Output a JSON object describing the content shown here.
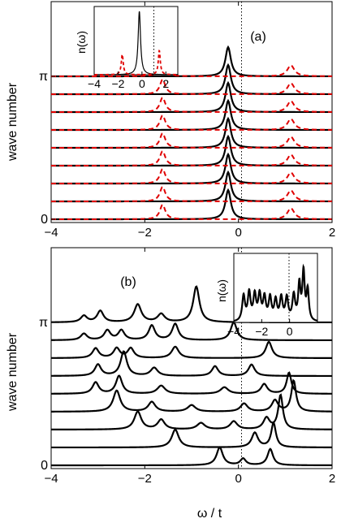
{
  "figure": {
    "xlabel": "ω / t",
    "ylabel": "wave number"
  },
  "colors": {
    "solid": "#000000",
    "dashed": "#e00000",
    "axis": "#000000"
  },
  "chart_data": [
    {
      "type": "line",
      "panel_label": "(a)",
      "ylabel": "wave number",
      "xlim": [
        -4,
        2
      ],
      "xticks": [
        -4,
        -2,
        0,
        2
      ],
      "xtick_labels": [
        "−4",
        "−2",
        "0",
        "2"
      ],
      "ytick_labels": [
        "0",
        "π"
      ],
      "y_levels": [
        0,
        1,
        2,
        3,
        4,
        5,
        6,
        7,
        8
      ],
      "y_tick_levels": [
        0,
        8
      ],
      "vline_x": 0,
      "series": [
        {
          "style": "solid",
          "peaks": [
            [
              -0.22,
              0.07,
              1.0
            ]
          ]
        },
        {
          "style": "dashed",
          "peaks": [
            [
              -1.62,
              0.07,
              0.5
            ],
            [
              1.12,
              0.09,
              0.38
            ]
          ]
        }
      ],
      "inset": {
        "ylabel": "n(ω)",
        "xlim": [
          -4,
          3
        ],
        "xticks": [
          -4,
          -2,
          0,
          2
        ],
        "xtick_labels": [
          "−4",
          "−2",
          "0",
          "2"
        ],
        "vline_x": 0,
        "series": [
          {
            "style": "solid",
            "peaks": [
              [
                -0.22,
                0.12,
                1.0
              ]
            ]
          },
          {
            "style": "dashed",
            "peaks": [
              [
                -1.65,
                0.1,
                0.32
              ],
              [
                1.45,
                0.1,
                0.38
              ]
            ]
          }
        ]
      }
    },
    {
      "type": "line",
      "panel_label": "(b)",
      "ylabel": "wave number",
      "xlim": [
        -4,
        2
      ],
      "xticks": [
        -4,
        -2,
        0,
        2
      ],
      "xtick_labels": [
        "−4",
        "−2",
        "0",
        "2"
      ],
      "ytick_labels": [
        "0",
        "π"
      ],
      "y_levels": [
        0,
        1,
        2,
        3,
        4,
        5,
        6,
        7,
        8
      ],
      "y_tick_levels": [
        0,
        8
      ],
      "vline_x": 0,
      "curves": [
        [
          [
            -0.4,
            0.08,
            0.55
          ],
          [
            0.1,
            0.07,
            0.2
          ],
          [
            0.68,
            0.07,
            0.5
          ]
        ],
        [
          [
            -1.35,
            0.09,
            0.55
          ],
          [
            0.35,
            0.08,
            0.45
          ],
          [
            0.75,
            0.06,
            0.75
          ]
        ],
        [
          [
            -2.15,
            0.09,
            0.55
          ],
          [
            -1.65,
            0.09,
            0.3
          ],
          [
            -0.8,
            0.1,
            0.2
          ],
          [
            -0.1,
            0.09,
            0.25
          ],
          [
            0.6,
            0.08,
            0.35
          ],
          [
            0.9,
            0.06,
            1.05
          ]
        ],
        [
          [
            -2.6,
            0.09,
            0.65
          ],
          [
            -1.85,
            0.09,
            0.3
          ],
          [
            -1.0,
            0.1,
            0.2
          ],
          [
            0.12,
            0.09,
            0.25
          ],
          [
            0.78,
            0.08,
            0.35
          ],
          [
            1.18,
            0.06,
            0.95
          ]
        ],
        [
          [
            -3.05,
            0.08,
            0.35
          ],
          [
            -2.55,
            0.08,
            0.55
          ],
          [
            -1.65,
            0.1,
            0.25
          ],
          [
            -0.3,
            0.1,
            0.2
          ],
          [
            0.55,
            0.08,
            0.3
          ],
          [
            1.08,
            0.06,
            0.65
          ]
        ],
        [
          [
            -3.0,
            0.08,
            0.35
          ],
          [
            -2.45,
            0.08,
            0.75
          ],
          [
            -1.8,
            0.09,
            0.25
          ],
          [
            -0.5,
            0.08,
            0.3
          ],
          [
            0.28,
            0.08,
            0.35
          ]
        ],
        [
          [
            -3.05,
            0.08,
            0.3
          ],
          [
            -2.6,
            0.08,
            0.3
          ],
          [
            -2.3,
            0.08,
            0.3
          ],
          [
            -1.35,
            0.09,
            0.35
          ],
          [
            0.65,
            0.08,
            0.5
          ]
        ],
        [
          [
            -3.3,
            0.08,
            0.2
          ],
          [
            -2.8,
            0.08,
            0.3
          ],
          [
            -2.5,
            0.08,
            0.3
          ],
          [
            -1.85,
            0.08,
            0.45
          ],
          [
            -1.35,
            0.08,
            0.5
          ],
          [
            -0.1,
            0.08,
            0.55
          ]
        ],
        [
          [
            -3.3,
            0.08,
            0.2
          ],
          [
            -2.95,
            0.08,
            0.35
          ],
          [
            -2.15,
            0.09,
            0.55
          ],
          [
            -1.65,
            0.09,
            0.25
          ],
          [
            -0.9,
            0.08,
            1.1
          ]
        ]
      ],
      "inset": {
        "ylabel": "n(ω)",
        "xlim": [
          -4,
          2
        ],
        "xticks": [
          -4,
          -2,
          0
        ],
        "xtick_labels": [
          "−4",
          "−2",
          "0"
        ],
        "vline_x": 0,
        "series": [
          {
            "style": "solid",
            "peaks": [
              [
                -3.3,
                0.12,
                0.5
              ],
              [
                -2.9,
                0.12,
                0.55
              ],
              [
                -2.5,
                0.12,
                0.5
              ],
              [
                -2.15,
                0.12,
                0.5
              ],
              [
                -1.8,
                0.12,
                0.45
              ],
              [
                -1.4,
                0.12,
                0.45
              ],
              [
                -1.0,
                0.12,
                0.4
              ],
              [
                -0.6,
                0.12,
                0.45
              ],
              [
                -0.2,
                0.12,
                0.45
              ],
              [
                0.3,
                0.12,
                0.5
              ],
              [
                0.7,
                0.1,
                0.7
              ],
              [
                1.0,
                0.1,
                0.95
              ],
              [
                1.3,
                0.1,
                0.6
              ]
            ]
          }
        ]
      }
    }
  ]
}
